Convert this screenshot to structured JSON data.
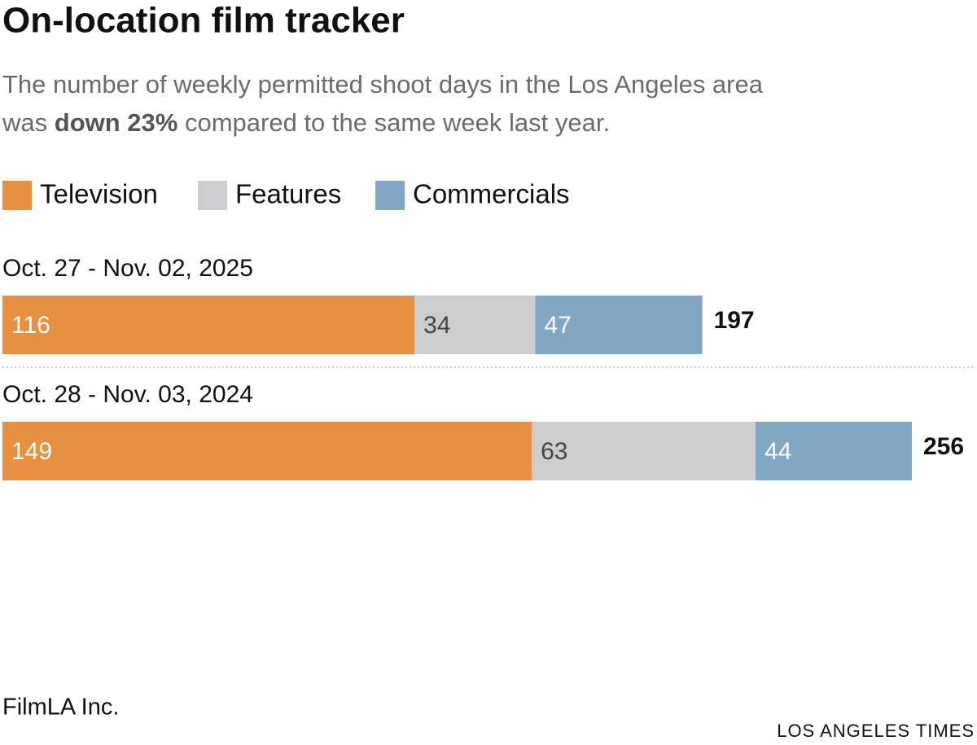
{
  "chart_data": {
    "type": "bar",
    "stacked": true,
    "orientation": "horizontal",
    "title": "On-location film tracker",
    "subtitle": [
      "The number of weekly permitted shoot days in the Los Angeles area",
      "was",
      "down 23%",
      "compared to the same week last year."
    ],
    "categories": [
      "Oct. 27 - Nov. 02, 2025",
      "Oct. 28 - Nov. 03, 2024"
    ],
    "series": [
      {
        "name": "Television",
        "color": "#e69142",
        "label_color": "#ffffff",
        "values": [
          116,
          149
        ]
      },
      {
        "name": "Features",
        "color": "#cdcdd1",
        "label_color": "#444444",
        "values": [
          34,
          63
        ]
      },
      {
        "name": "Commercials",
        "color": "#82a7c2",
        "label_color": "#ffffff",
        "values": [
          47,
          44
        ]
      }
    ],
    "totals": [
      197,
      256
    ],
    "source": "FilmLA Inc.",
    "credit": "LOS ANGELES TIMES"
  }
}
